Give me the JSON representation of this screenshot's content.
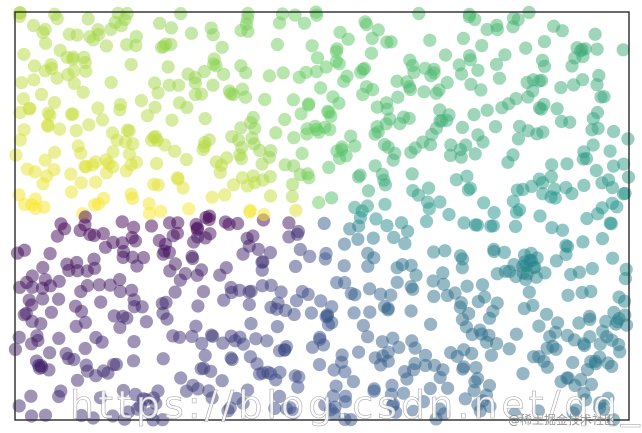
{
  "chart_data": {
    "type": "scatter",
    "title": "",
    "xlabel": "",
    "ylabel": "",
    "xlim": [
      0,
      1
    ],
    "ylim": [
      0,
      1
    ],
    "grid": false,
    "legend": "none",
    "point_count": 1000,
    "color_map": "viridis",
    "color_encoding": "angle of each point around the center of the plot",
    "marker_alpha": 0.5,
    "colors": {
      "c0": "#440154",
      "c1": "#3b528b",
      "c2": "#21918c",
      "c3": "#5ec962",
      "c4": "#fde725"
    },
    "seed": 7
  },
  "watermark": {
    "main": "https://blog.csdn.net/qq_40693171",
    "corner": "@稀土掘金技术社区"
  }
}
